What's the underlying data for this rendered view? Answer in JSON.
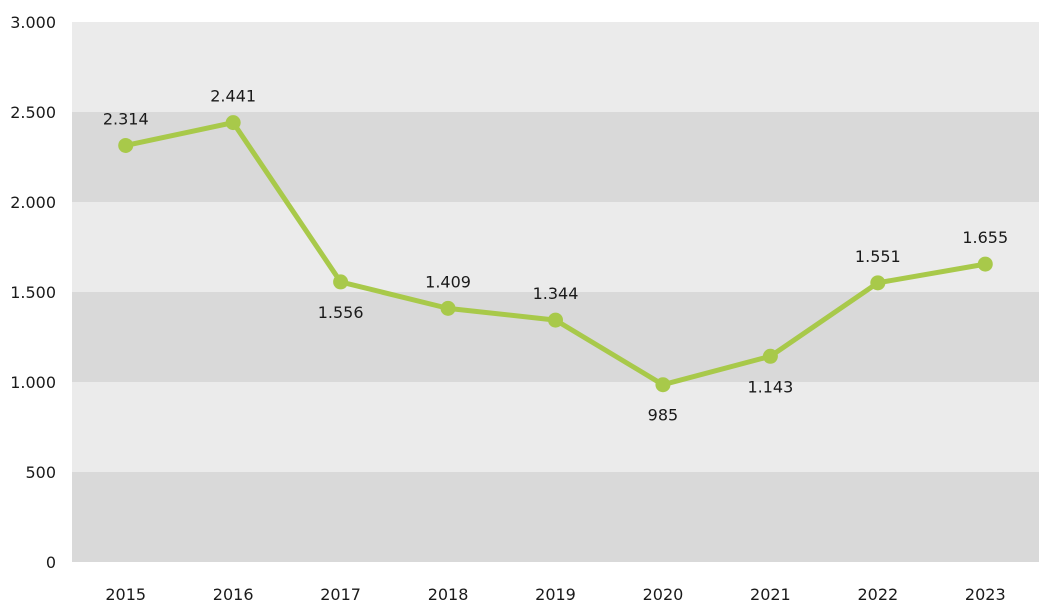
{
  "chart_data": {
    "type": "line",
    "title": "",
    "xlabel": "",
    "ylabel": "",
    "categories": [
      "2015",
      "2016",
      "2017",
      "2018",
      "2019",
      "2020",
      "2021",
      "2022",
      "2023"
    ],
    "series": [
      {
        "values": [
          2314,
          2441,
          1556,
          1409,
          1344,
          985,
          1143,
          1551,
          1655
        ],
        "labels": [
          "2.314",
          "2.441",
          "1.556",
          "1.409",
          "1.344",
          "985",
          "1.143",
          "1.551",
          "1.655"
        ],
        "color": "#a8c94a"
      }
    ],
    "ylim": [
      0,
      3000
    ],
    "y_ticks": [
      0,
      500,
      1000,
      1500,
      2000,
      2500,
      3000
    ],
    "y_tick_labels": [
      "0",
      "500",
      "1.000",
      "1.500",
      "2.000",
      "2.500",
      "3.000"
    ],
    "label_positions": [
      "above",
      "above",
      "below",
      "above",
      "above",
      "below",
      "below",
      "above",
      "above"
    ],
    "grid": true,
    "band_colors": [
      "#d9d9d9",
      "#ebebeb"
    ],
    "legend": "none"
  }
}
